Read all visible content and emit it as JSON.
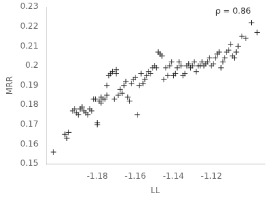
{
  "chart_data": {
    "type": "scatter",
    "x": [
      -1.203,
      -1.197,
      -1.196,
      -1.195,
      -1.193,
      -1.192,
      -1.191,
      -1.19,
      -1.189,
      -1.188,
      -1.187,
      -1.186,
      -1.185,
      -1.184,
      -1.183,
      -1.182,
      -1.181,
      -1.18,
      -1.18,
      -1.179,
      -1.178,
      -1.178,
      -1.177,
      -1.176,
      -1.175,
      -1.175,
      -1.174,
      -1.173,
      -1.172,
      -1.171,
      -1.17,
      -1.17,
      -1.169,
      -1.168,
      -1.167,
      -1.166,
      -1.165,
      -1.164,
      -1.163,
      -1.162,
      -1.161,
      -1.16,
      -1.159,
      -1.158,
      -1.157,
      -1.156,
      -1.155,
      -1.154,
      -1.153,
      -1.152,
      -1.151,
      -1.15,
      -1.149,
      -1.148,
      -1.147,
      -1.146,
      -1.145,
      -1.144,
      -1.143,
      -1.142,
      -1.141,
      -1.14,
      -1.139,
      -1.138,
      -1.137,
      -1.136,
      -1.135,
      -1.134,
      -1.133,
      -1.132,
      -1.131,
      -1.13,
      -1.129,
      -1.128,
      -1.127,
      -1.126,
      -1.125,
      -1.124,
      -1.123,
      -1.122,
      -1.121,
      -1.12,
      -1.119,
      -1.118,
      -1.117,
      -1.116,
      -1.115,
      -1.114,
      -1.113,
      -1.112,
      -1.111,
      -1.11,
      -1.109,
      -1.108,
      -1.107,
      -1.106,
      -1.104,
      -1.102,
      -1.099,
      -1.096
    ],
    "values": [
      0.156,
      0.165,
      0.163,
      0.166,
      0.177,
      0.178,
      0.176,
      0.175,
      0.178,
      0.179,
      0.177,
      0.176,
      0.175,
      0.178,
      0.177,
      0.183,
      0.183,
      0.171,
      0.17,
      0.182,
      0.184,
      0.181,
      0.183,
      0.183,
      0.19,
      0.185,
      0.195,
      0.196,
      0.197,
      0.183,
      0.196,
      0.198,
      0.185,
      0.188,
      0.186,
      0.19,
      0.192,
      0.184,
      0.182,
      0.191,
      0.193,
      0.194,
      0.175,
      0.19,
      0.196,
      0.191,
      0.193,
      0.195,
      0.197,
      0.196,
      0.199,
      0.2,
      0.199,
      0.207,
      0.206,
      0.205,
      0.193,
      0.199,
      0.195,
      0.2,
      0.202,
      0.195,
      0.196,
      0.199,
      0.202,
      0.2,
      0.195,
      0.196,
      0.2,
      0.201,
      0.199,
      0.2,
      0.202,
      0.197,
      0.2,
      0.2,
      0.202,
      0.2,
      0.201,
      0.202,
      0.204,
      0.2,
      0.201,
      0.204,
      0.206,
      0.207,
      0.199,
      0.202,
      0.204,
      0.207,
      0.208,
      0.211,
      0.205,
      0.204,
      0.207,
      0.21,
      0.215,
      0.214,
      0.222,
      0.217
    ],
    "color": "#222222",
    "marker": "cross",
    "xlabel": "LL",
    "ylabel": "MRR",
    "xlim": [
      -1.207,
      -1.092
    ],
    "ylim": [
      0.15,
      0.23
    ],
    "xticks": [
      -1.18,
      -1.16,
      -1.14,
      -1.12
    ],
    "yticks": [
      0.15,
      0.16,
      0.17,
      0.18,
      0.19,
      0.2,
      0.21,
      0.22,
      0.23
    ],
    "grid": false,
    "annotations": [
      {
        "text": "ρ = 0.86",
        "x": -1.118,
        "y": 0.2255
      }
    ]
  }
}
